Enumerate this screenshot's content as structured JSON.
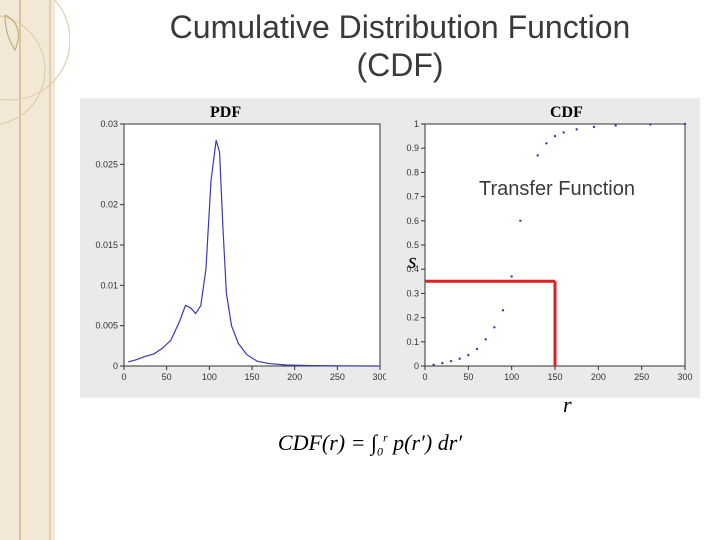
{
  "title_line1": "Cumulative Distribution Function",
  "title_line2": "(CDF)",
  "pdf_chart": {
    "title": "PDF",
    "x_ticks": [
      0,
      50,
      100,
      150,
      200,
      250,
      300
    ],
    "y_ticks": [
      "0",
      "0.005",
      "0.01",
      "0.015",
      "0.02",
      "0.025",
      "0.03"
    ],
    "xlim": [
      0,
      300
    ],
    "ylim": [
      0,
      0.03
    ],
    "line_color": "#3a3ab8",
    "bg_color": "#ffffff",
    "points": [
      [
        5,
        0.0005
      ],
      [
        15,
        0.0008
      ],
      [
        25,
        0.0012
      ],
      [
        35,
        0.0015
      ],
      [
        45,
        0.0022
      ],
      [
        55,
        0.0032
      ],
      [
        65,
        0.0055
      ],
      [
        72,
        0.0075
      ],
      [
        78,
        0.0072
      ],
      [
        84,
        0.0065
      ],
      [
        90,
        0.0075
      ],
      [
        96,
        0.012
      ],
      [
        102,
        0.023
      ],
      [
        108,
        0.028
      ],
      [
        112,
        0.0265
      ],
      [
        116,
        0.017
      ],
      [
        120,
        0.009
      ],
      [
        126,
        0.005
      ],
      [
        134,
        0.0028
      ],
      [
        144,
        0.0014
      ],
      [
        156,
        0.0006
      ],
      [
        170,
        0.0003
      ],
      [
        190,
        0.00012
      ],
      [
        220,
        5e-05
      ],
      [
        260,
        2e-05
      ],
      [
        300,
        0.0
      ]
    ]
  },
  "cdf_chart": {
    "title": "CDF",
    "x_ticks": [
      0,
      50,
      100,
      150,
      200,
      250,
      300
    ],
    "y_ticks": [
      "0",
      "0.1",
      "0.2",
      "0.3",
      "0.4",
      "0.5",
      "0.6",
      "0.7",
      "0.8",
      "0.9",
      "1"
    ],
    "xlim": [
      0,
      300
    ],
    "ylim": [
      0,
      1
    ],
    "dot_color": "#3a3ab8",
    "bg_color": "#ffffff",
    "points": [
      [
        10,
        0.005
      ],
      [
        20,
        0.012
      ],
      [
        30,
        0.02
      ],
      [
        40,
        0.03
      ],
      [
        50,
        0.045
      ],
      [
        60,
        0.07
      ],
      [
        70,
        0.11
      ],
      [
        80,
        0.16
      ],
      [
        90,
        0.23
      ],
      [
        100,
        0.37
      ],
      [
        110,
        0.6
      ],
      [
        120,
        0.78
      ],
      [
        130,
        0.87
      ],
      [
        140,
        0.92
      ],
      [
        150,
        0.95
      ],
      [
        160,
        0.965
      ],
      [
        175,
        0.978
      ],
      [
        195,
        0.988
      ],
      [
        220,
        0.994
      ],
      [
        260,
        0.998
      ],
      [
        300,
        1.0
      ]
    ],
    "marker_r": [
      150,
      0.35
    ],
    "marker_s": 0.35
  },
  "annotation": "Transfer Function",
  "var_s": "s",
  "var_r": "r",
  "formula_html": "CDF(r) = ∫<sub style='font-size:12px'>0</sub><sup style='font-size:12px'>r</sup> p(r′) dr′",
  "colors": {
    "side_band": "#f2e8d5",
    "side_line": "#c9b98a",
    "red_marker": "#e02020",
    "grid_bg": "#eaeaea"
  }
}
